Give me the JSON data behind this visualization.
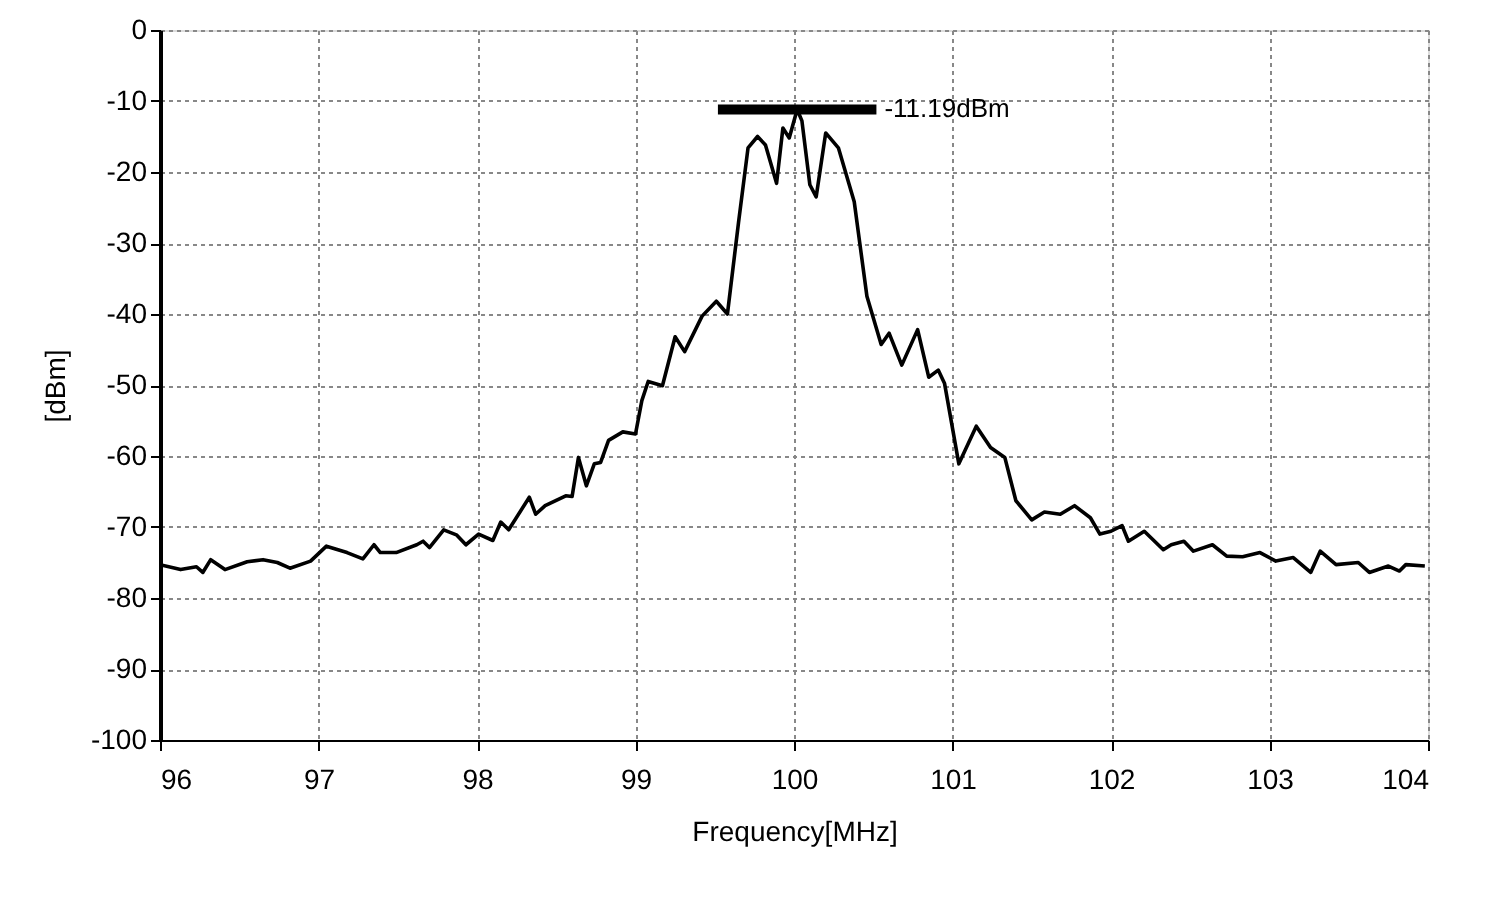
{
  "chart_data": {
    "type": "line",
    "xlabel": "Frequency[MHz]",
    "ylabel": "[dBm]",
    "xlim": [
      96,
      104
    ],
    "xticks": [
      96,
      97,
      98,
      99,
      100,
      101,
      102,
      103,
      104
    ],
    "ylim": [
      -100,
      0
    ],
    "yticks": [
      -100,
      -90,
      -80,
      -70,
      -60,
      -50,
      -40,
      -30,
      -20,
      -10,
      0
    ],
    "grid": true,
    "marker": "none",
    "line_style": "solid",
    "series": [
      {
        "color": "#000000",
        "x": [
          96.0,
          96.13,
          96.23,
          96.27,
          96.32,
          96.41,
          96.55,
          96.65,
          96.74,
          96.82,
          96.95,
          97.05,
          97.18,
          97.28,
          97.35,
          97.39,
          97.49,
          97.62,
          97.66,
          97.7,
          97.79,
          97.87,
          97.93,
          98.01,
          98.1,
          98.15,
          98.2,
          98.33,
          98.37,
          98.43,
          98.56,
          98.6,
          98.64,
          98.69,
          98.74,
          98.78,
          98.83,
          98.92,
          99.0,
          99.04,
          99.08,
          99.17,
          99.25,
          99.31,
          99.42,
          99.51,
          99.58,
          99.65,
          99.71,
          99.77,
          99.82,
          99.89,
          99.93,
          99.97,
          100.02,
          100.05,
          100.1,
          100.14,
          100.2,
          100.28,
          100.38,
          100.46,
          100.55,
          100.6,
          100.68,
          100.78,
          100.85,
          100.91,
          100.95,
          101.04,
          101.15,
          101.24,
          101.33,
          101.4,
          101.5,
          101.58,
          101.68,
          101.77,
          101.87,
          101.93,
          102.0,
          102.07,
          102.11,
          102.21,
          102.33,
          102.38,
          102.46,
          102.52,
          102.64,
          102.73,
          102.83,
          102.94,
          103.04,
          103.15,
          103.26,
          103.32,
          103.42,
          103.56,
          103.63,
          103.75,
          103.82,
          103.86,
          103.98
        ],
        "values": [
          -75.3,
          -76.0,
          -75.6,
          -76.4,
          -74.6,
          -76.0,
          -74.9,
          -74.6,
          -75.0,
          -75.8,
          -74.8,
          -72.7,
          -73.6,
          -74.5,
          -72.5,
          -73.6,
          -73.6,
          -72.5,
          -72.0,
          -72.9,
          -70.4,
          -71.1,
          -72.5,
          -71.0,
          -71.9,
          -69.3,
          -70.4,
          -65.8,
          -68.2,
          -67.0,
          -65.6,
          -65.7,
          -60.2,
          -64.2,
          -61.1,
          -60.9,
          -57.8,
          -56.6,
          -56.9,
          -52.2,
          -49.5,
          -50.1,
          -43.2,
          -45.3,
          -40.3,
          -38.2,
          -40.0,
          -27.1,
          -16.6,
          -15.0,
          -16.2,
          -21.6,
          -13.8,
          -15.2,
          -11.19,
          -12.8,
          -21.8,
          -23.5,
          -14.5,
          -16.6,
          -24.2,
          -37.5,
          -44.3,
          -42.7,
          -47.2,
          -42.2,
          -48.9,
          -47.9,
          -49.8,
          -61.1,
          -55.8,
          -58.8,
          -60.2,
          -66.3,
          -69.0,
          -67.9,
          -68.2,
          -67.0,
          -68.7,
          -71.0,
          -70.6,
          -69.8,
          -72.0,
          -70.6,
          -73.2,
          -72.5,
          -72.0,
          -73.4,
          -72.5,
          -74.1,
          -74.2,
          -73.6,
          -74.8,
          -74.3,
          -76.4,
          -73.4,
          -75.3,
          -75.0,
          -76.4,
          -75.5,
          -76.2,
          -75.3,
          -75.5
        ]
      },
      {
        "color": "#000000",
        "x": [
          99.52,
          100.52
        ],
        "values": [
          -11.19,
          -11.19
        ]
      }
    ],
    "annotations": [
      {
        "text": "-11.19dBm",
        "x": 100.52,
        "y": -11.19
      }
    ]
  }
}
